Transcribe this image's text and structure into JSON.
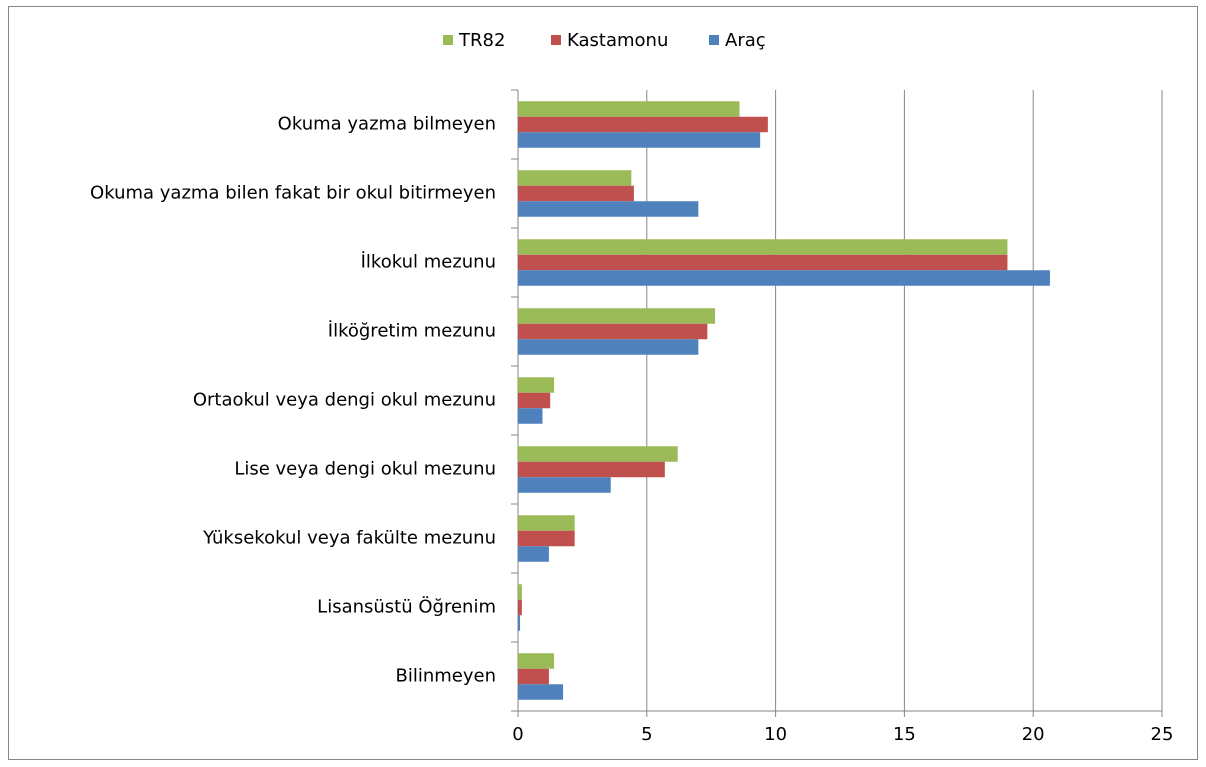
{
  "chart_data": {
    "type": "bar",
    "orientation": "horizontal",
    "categories": [
      "Okuma yazma bilmeyen",
      "Okuma yazma bilen fakat bir okul bitirmeyen",
      "İlkokul mezunu",
      "İlköğretim mezunu",
      "Ortaokul veya dengi okul mezunu",
      "Lise veya dengi okul mezunu",
      "Yüksekokul veya fakülte mezunu",
      "Lisansüstü Öğrenim",
      "Bilinmeyen"
    ],
    "series": [
      {
        "name": "TR82",
        "color": "#9bbb59",
        "values": [
          8.6,
          4.4,
          19.0,
          7.65,
          1.4,
          6.2,
          2.2,
          0.15,
          1.4
        ]
      },
      {
        "name": "Kastamonu",
        "color": "#c0504d",
        "values": [
          9.7,
          4.5,
          19.0,
          7.35,
          1.25,
          5.7,
          2.2,
          0.15,
          1.2
        ]
      },
      {
        "name": "Araç",
        "color": "#4f81bd",
        "values": [
          9.4,
          7.0,
          20.65,
          7.0,
          0.95,
          3.6,
          1.2,
          0.08,
          1.75
        ]
      }
    ],
    "xlim": [
      0,
      25
    ],
    "xticks": [
      0,
      5,
      10,
      15,
      20,
      25
    ],
    "grid": true,
    "legend": "top"
  }
}
